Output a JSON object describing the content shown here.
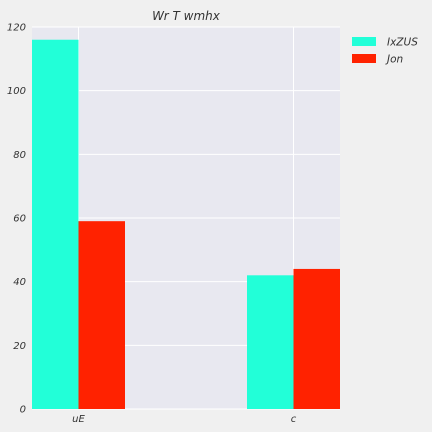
{
  "chart_data": {
    "type": "bar",
    "title": "Wr T wmhx",
    "xlabel": "",
    "ylabel": "",
    "categories": [
      "uE",
      "c"
    ],
    "series": [
      {
        "name": "IxZUS",
        "values": [
          116,
          42
        ],
        "color": "#22ffd8"
      },
      {
        "name": "Jon",
        "values": [
          59,
          44
        ],
        "color": "#ff2200"
      }
    ],
    "ylim": [
      0,
      120
    ],
    "yticks": [
      0,
      20,
      40,
      60,
      80,
      100,
      120
    ],
    "grid": true,
    "legend": "top-right",
    "plot_background": "#e8e8f0",
    "grid_color": "#ffffff"
  }
}
